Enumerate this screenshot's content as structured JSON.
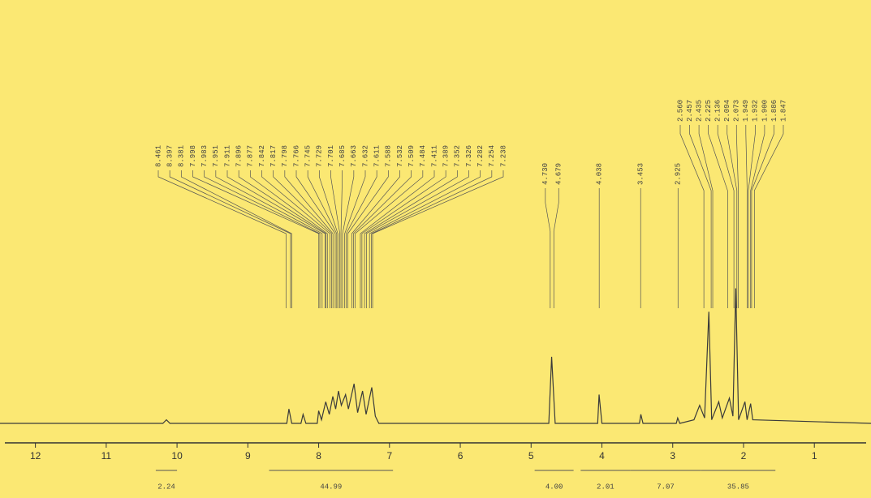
{
  "chart_data": {
    "type": "line",
    "xlim": [
      12.5,
      0.2
    ],
    "ylim": [
      0,
      100
    ],
    "xticks": [
      12,
      11,
      10,
      9,
      8,
      7,
      6,
      5,
      4,
      3,
      2,
      1
    ],
    "series": [
      {
        "color": "#3a3a3a",
        "x": [
          12.5,
          10.2,
          10.15,
          10.1,
          8.45,
          8.42,
          8.38,
          8.25,
          8.22,
          8.18,
          8.02,
          8.0,
          7.96,
          7.9,
          7.85,
          7.8,
          7.76,
          7.72,
          7.68,
          7.62,
          7.58,
          7.5,
          7.45,
          7.38,
          7.33,
          7.25,
          7.2,
          7.15,
          4.75,
          4.71,
          4.66,
          4.06,
          4.04,
          4.0,
          3.47,
          3.45,
          3.42,
          2.95,
          2.93,
          2.9,
          2.7,
          2.62,
          2.55,
          2.49,
          2.45,
          2.35,
          2.3,
          2.2,
          2.15,
          2.11,
          2.07,
          1.98,
          1.95,
          1.9,
          1.87,
          0.2
        ],
        "values": [
          0,
          0,
          2,
          0,
          0,
          8,
          0,
          0,
          5,
          0,
          0,
          7,
          2,
          12,
          5,
          15,
          8,
          18,
          10,
          16,
          8,
          22,
          6,
          18,
          5,
          20,
          4,
          0,
          0,
          37,
          0,
          0,
          16,
          0,
          0,
          5,
          0,
          0,
          3,
          0,
          2,
          10,
          3,
          62,
          2,
          12,
          3,
          14,
          4,
          75,
          2,
          12,
          2,
          11,
          2,
          0
        ]
      }
    ],
    "peak_labels": [
      {
        "value": 8.461,
        "label": "8.461"
      },
      {
        "value": 8.397,
        "label": "8.397"
      },
      {
        "value": 8.381,
        "label": "8.381"
      },
      {
        "value": 7.998,
        "label": "7.998"
      },
      {
        "value": 7.983,
        "label": "7.983"
      },
      {
        "value": 7.951,
        "label": "7.951"
      },
      {
        "value": 7.911,
        "label": "7.911"
      },
      {
        "value": 7.896,
        "label": "7.896"
      },
      {
        "value": 7.877,
        "label": "7.877"
      },
      {
        "value": 7.842,
        "label": "7.842"
      },
      {
        "value": 7.817,
        "label": "7.817"
      },
      {
        "value": 7.798,
        "label": "7.798"
      },
      {
        "value": 7.766,
        "label": "7.766"
      },
      {
        "value": 7.745,
        "label": "7.745"
      },
      {
        "value": 7.729,
        "label": "7.729"
      },
      {
        "value": 7.701,
        "label": "7.701"
      },
      {
        "value": 7.685,
        "label": "7.685"
      },
      {
        "value": 7.663,
        "label": "7.663"
      },
      {
        "value": 7.632,
        "label": "7.632"
      },
      {
        "value": 7.611,
        "label": "7.611"
      },
      {
        "value": 7.588,
        "label": "7.588"
      },
      {
        "value": 7.532,
        "label": "7.532"
      },
      {
        "value": 7.509,
        "label": "7.509"
      },
      {
        "value": 7.484,
        "label": "7.484"
      },
      {
        "value": 7.411,
        "label": "7.411"
      },
      {
        "value": 7.389,
        "label": "7.389"
      },
      {
        "value": 7.352,
        "label": "7.352"
      },
      {
        "value": 7.326,
        "label": "7.326"
      },
      {
        "value": 7.282,
        "label": "7.282"
      },
      {
        "value": 7.254,
        "label": "7.254"
      },
      {
        "value": 7.238,
        "label": "7.238"
      }
    ],
    "peak_labels_single": [
      {
        "value": 4.73,
        "label": "4.730"
      },
      {
        "value": 4.679,
        "label": "4.679"
      },
      {
        "value": 4.038,
        "label": "4.038"
      },
      {
        "value": 3.453,
        "label": "3.453"
      },
      {
        "value": 2.925,
        "label": "2.925"
      }
    ],
    "peak_labels_right": [
      {
        "value": 2.56,
        "label": "2.560"
      },
      {
        "value": 2.457,
        "label": "2.457"
      },
      {
        "value": 2.435,
        "label": "2.435"
      },
      {
        "value": 2.225,
        "label": "2.225"
      },
      {
        "value": 2.136,
        "label": "2.136"
      },
      {
        "value": 2.094,
        "label": "2.094"
      },
      {
        "value": 2.073,
        "label": "2.073"
      },
      {
        "value": 1.949,
        "label": "1.949"
      },
      {
        "value": 1.932,
        "label": "1.932"
      },
      {
        "value": 1.9,
        "label": "1.900"
      },
      {
        "value": 1.886,
        "label": "1.886"
      },
      {
        "value": 1.847,
        "label": "1.847"
      }
    ],
    "integrals": {
      "ranges": [
        [
          10.3,
          10.0
        ],
        [
          8.7,
          6.95
        ],
        [
          4.95,
          4.4
        ],
        [
          4.3,
          3.6
        ],
        [
          3.6,
          2.6
        ],
        [
          2.6,
          1.55
        ]
      ],
      "values": [
        2.24,
        44.99,
        4,
        2.01,
        7.07,
        35.85
      ],
      "value_labels": [
        "2.24",
        "44.99",
        "4.00",
        "2.01",
        "7.07",
        "35.85"
      ]
    }
  }
}
